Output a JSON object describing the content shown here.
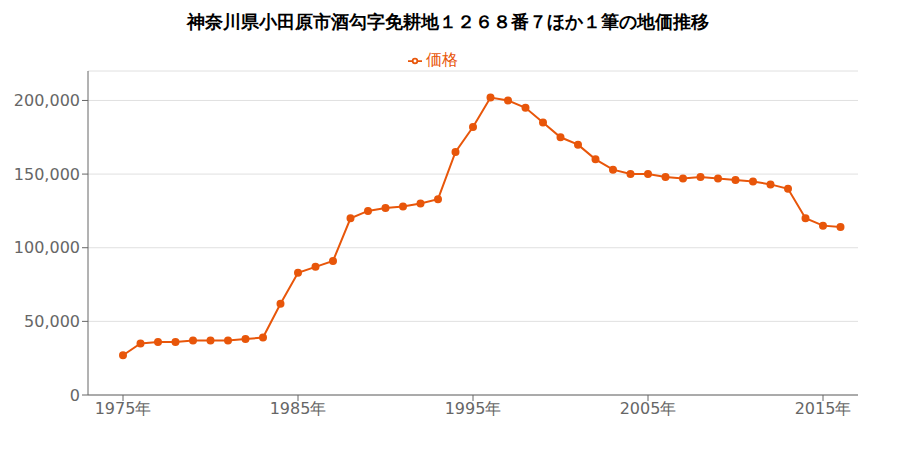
{
  "chart_data": {
    "type": "line",
    "title": "神奈川県小田原市酒勾字免耕地１２６８番７ほか１筆の地価推移",
    "x": [
      1975,
      1976,
      1977,
      1978,
      1979,
      1980,
      1981,
      1982,
      1983,
      1984,
      1985,
      1986,
      1987,
      1988,
      1989,
      1990,
      1991,
      1992,
      1993,
      1994,
      1995,
      1996,
      1997,
      1998,
      1999,
      2000,
      2001,
      2002,
      2003,
      2004,
      2005,
      2006,
      2007,
      2008,
      2009,
      2010,
      2011,
      2012,
      2013,
      2014,
      2015,
      2016
    ],
    "series": [
      {
        "name": "価格",
        "color": "#e8560a",
        "marker": "circle",
        "line_style": "solid",
        "values": [
          27000,
          35000,
          36000,
          36000,
          37000,
          37000,
          37000,
          38000,
          39000,
          62000,
          83000,
          87000,
          91000,
          120000,
          125000,
          127000,
          128000,
          130000,
          133000,
          165000,
          182000,
          202000,
          200000,
          195000,
          185000,
          175000,
          170000,
          160000,
          153000,
          150000,
          150000,
          148000,
          147000,
          148000,
          147000,
          146000,
          145000,
          143000,
          140000,
          120000,
          115000,
          114000
        ]
      }
    ],
    "xlim": [
      1973,
      2017
    ],
    "xticks": [
      {
        "value": 1975,
        "label": "1975年"
      },
      {
        "value": 1985,
        "label": "1985年"
      },
      {
        "value": 1995,
        "label": "1995年"
      },
      {
        "value": 2005,
        "label": "2005年"
      },
      {
        "value": 2015,
        "label": "2015年"
      }
    ],
    "ylim": [
      0,
      220000
    ],
    "yticks": [
      0,
      {
        "value": 50000,
        "label": "50,000"
      },
      {
        "value": 100000,
        "label": "100,000"
      },
      {
        "value": 150000,
        "label": "150,000"
      },
      {
        "value": 200000,
        "label": "200,000"
      }
    ],
    "grid": true,
    "legend": "top"
  }
}
